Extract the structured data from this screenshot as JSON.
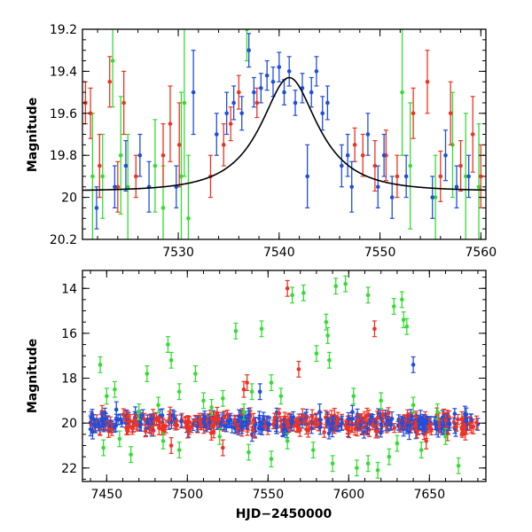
{
  "colors": {
    "green": "#33dd33",
    "red": "#ee3322",
    "blue": "#1f4fdd",
    "model": "#000000"
  },
  "chart_data": [
    {
      "type": "scatter",
      "panel": "top",
      "xlabel": "",
      "ylabel": "Magnitude",
      "xlim": [
        7520.5,
        7560.5
      ],
      "ylim": [
        20.2,
        19.2
      ],
      "y_inverted": true,
      "xticks": [
        7530,
        7540,
        7550,
        7560
      ],
      "yticks": [
        19.2,
        19.4,
        19.6,
        19.8,
        20,
        20.2
      ],
      "xtick_labels": [
        "7530",
        "7540",
        "7550",
        "7560"
      ],
      "ytick_labels": [
        "19.2",
        "19.4",
        "19.6",
        "19.8",
        "20",
        "20.2"
      ],
      "model": {
        "type": "microlensing",
        "peak_x": 7541,
        "peak_mag": 19.43,
        "base_mag": 19.97,
        "width": 5.5
      },
      "series": [
        {
          "color": "green",
          "points": [
            {
              "x": 7521.5,
              "y": 19.9,
              "e": 0.3
            },
            {
              "x": 7522.5,
              "y": 19.9,
              "e": 0.2
            },
            {
              "x": 7523.5,
              "y": 19.35,
              "e": 0.22
            },
            {
              "x": 7524.3,
              "y": 19.8,
              "e": 0.28
            },
            {
              "x": 7525,
              "y": 19.95,
              "e": 0.25
            },
            {
              "x": 7527.7,
              "y": 19.85,
              "e": 0.22
            },
            {
              "x": 7528.5,
              "y": 20.05,
              "e": 0.2
            },
            {
              "x": 7530.3,
              "y": 19.9,
              "e": 0.4
            },
            {
              "x": 7530.6,
              "y": 19.55,
              "e": 0.35
            },
            {
              "x": 7531,
              "y": 20.1,
              "e": 0.3
            },
            {
              "x": 7536.8,
              "y": 19.2,
              "e": 0.15
            },
            {
              "x": 7552.2,
              "y": 19.5,
              "e": 0.3
            },
            {
              "x": 7553,
              "y": 19.85,
              "e": 0.3
            },
            {
              "x": 7555.5,
              "y": 20.0,
              "e": 0.2
            },
            {
              "x": 7557.2,
              "y": 19.75,
              "e": 0.25
            },
            {
              "x": 7558.5,
              "y": 19.9,
              "e": 0.3
            },
            {
              "x": 7559.8,
              "y": 19.95,
              "e": 0.3
            }
          ]
        },
        {
          "color": "red",
          "points": [
            {
              "x": 7520.8,
              "y": 19.55,
              "e": 0.1
            },
            {
              "x": 7521.3,
              "y": 19.6,
              "e": 0.12
            },
            {
              "x": 7522.2,
              "y": 19.85,
              "e": 0.15
            },
            {
              "x": 7523.2,
              "y": 19.45,
              "e": 0.12
            },
            {
              "x": 7524,
              "y": 19.95,
              "e": 0.12
            },
            {
              "x": 7524.6,
              "y": 19.55,
              "e": 0.15
            },
            {
              "x": 7525.8,
              "y": 19.9,
              "e": 0.1
            },
            {
              "x": 7528.5,
              "y": 19.8,
              "e": 0.15
            },
            {
              "x": 7529.2,
              "y": 19.65,
              "e": 0.18
            },
            {
              "x": 7530.1,
              "y": 19.75,
              "e": 0.2
            },
            {
              "x": 7533.2,
              "y": 19.9,
              "e": 0.1
            },
            {
              "x": 7534.5,
              "y": 19.75,
              "e": 0.1
            },
            {
              "x": 7535.2,
              "y": 19.65,
              "e": 0.08
            },
            {
              "x": 7536,
              "y": 19.5,
              "e": 0.08
            },
            {
              "x": 7537.8,
              "y": 19.55,
              "e": 0.07
            },
            {
              "x": 7547.5,
              "y": 19.75,
              "e": 0.08
            },
            {
              "x": 7548.3,
              "y": 19.8,
              "e": 0.1
            },
            {
              "x": 7549.5,
              "y": 19.85,
              "e": 0.12
            },
            {
              "x": 7550.6,
              "y": 19.8,
              "e": 0.12
            },
            {
              "x": 7551.7,
              "y": 19.9,
              "e": 0.1
            },
            {
              "x": 7553.3,
              "y": 19.6,
              "e": 0.12
            },
            {
              "x": 7554.7,
              "y": 19.45,
              "e": 0.15
            },
            {
              "x": 7556,
              "y": 19.9,
              "e": 0.12
            },
            {
              "x": 7557,
              "y": 19.6,
              "e": 0.15
            },
            {
              "x": 7558,
              "y": 19.85,
              "e": 0.12
            },
            {
              "x": 7559.2,
              "y": 19.7,
              "e": 0.18
            },
            {
              "x": 7560,
              "y": 19.9,
              "e": 0.15
            }
          ]
        },
        {
          "color": "blue",
          "points": [
            {
              "x": 7521.9,
              "y": 20.05,
              "e": 0.1
            },
            {
              "x": 7523.7,
              "y": 19.95,
              "e": 0.1
            },
            {
              "x": 7524.8,
              "y": 19.85,
              "e": 0.12
            },
            {
              "x": 7526.2,
              "y": 19.8,
              "e": 0.1
            },
            {
              "x": 7527.1,
              "y": 19.95,
              "e": 0.12
            },
            {
              "x": 7529.8,
              "y": 19.95,
              "e": 0.1
            },
            {
              "x": 7531.5,
              "y": 19.5,
              "e": 0.2
            },
            {
              "x": 7533.8,
              "y": 19.7,
              "e": 0.1
            },
            {
              "x": 7534.8,
              "y": 19.6,
              "e": 0.1
            },
            {
              "x": 7535.5,
              "y": 19.55,
              "e": 0.08
            },
            {
              "x": 7536.3,
              "y": 19.6,
              "e": 0.08
            },
            {
              "x": 7537,
              "y": 19.3,
              "e": 0.08
            },
            {
              "x": 7537.5,
              "y": 19.5,
              "e": 0.07
            },
            {
              "x": 7538.2,
              "y": 19.48,
              "e": 0.07
            },
            {
              "x": 7538.8,
              "y": 19.42,
              "e": 0.07
            },
            {
              "x": 7539.4,
              "y": 19.45,
              "e": 0.07
            },
            {
              "x": 7540,
              "y": 19.38,
              "e": 0.07
            },
            {
              "x": 7540.5,
              "y": 19.5,
              "e": 0.06
            },
            {
              "x": 7541,
              "y": 19.4,
              "e": 0.07
            },
            {
              "x": 7541.6,
              "y": 19.55,
              "e": 0.06
            },
            {
              "x": 7542.3,
              "y": 19.48,
              "e": 0.07
            },
            {
              "x": 7542.8,
              "y": 19.9,
              "e": 0.15
            },
            {
              "x": 7543.2,
              "y": 19.5,
              "e": 0.07
            },
            {
              "x": 7543.7,
              "y": 19.4,
              "e": 0.07
            },
            {
              "x": 7544.3,
              "y": 19.6,
              "e": 0.08
            },
            {
              "x": 7544.8,
              "y": 19.55,
              "e": 0.08
            },
            {
              "x": 7546.2,
              "y": 19.85,
              "e": 0.1
            },
            {
              "x": 7546.8,
              "y": 19.8,
              "e": 0.1
            },
            {
              "x": 7547.2,
              "y": 19.95,
              "e": 0.12
            },
            {
              "x": 7548.8,
              "y": 19.7,
              "e": 0.1
            },
            {
              "x": 7549.8,
              "y": 19.95,
              "e": 0.1
            },
            {
              "x": 7550.4,
              "y": 19.8,
              "e": 0.1
            },
            {
              "x": 7551.2,
              "y": 20.0,
              "e": 0.1
            },
            {
              "x": 7552.6,
              "y": 19.9,
              "e": 0.1
            },
            {
              "x": 7555.2,
              "y": 20.0,
              "e": 0.1
            },
            {
              "x": 7556.5,
              "y": 19.8,
              "e": 0.12
            },
            {
              "x": 7557.6,
              "y": 19.95,
              "e": 0.1
            },
            {
              "x": 7558.8,
              "y": 19.9,
              "e": 0.1
            }
          ]
        }
      ]
    },
    {
      "type": "scatter",
      "panel": "bottom",
      "xlabel": "HJD−2450000",
      "ylabel": "Magnitude",
      "xlim": [
        7435,
        7685
      ],
      "ylim": [
        22.6,
        13.2
      ],
      "y_inverted": true,
      "xticks": [
        7450,
        7500,
        7550,
        7600,
        7650
      ],
      "yticks": [
        14,
        16,
        18,
        20,
        22
      ],
      "xtick_labels": [
        "7450",
        "7500",
        "7550",
        "7600",
        "7650"
      ],
      "ytick_labels": [
        "14",
        "16",
        "18",
        "20",
        "22"
      ],
      "dense_band": {
        "x_range": [
          7440,
          7680
        ],
        "center_mag": 20.0,
        "scatter": 0.25,
        "colors": [
          "blue",
          "red"
        ]
      },
      "series": [
        {
          "color": "green",
          "points": [
            {
              "x": 7446,
              "y": 17.4
            },
            {
              "x": 7450,
              "y": 18.8
            },
            {
              "x": 7455,
              "y": 18.5
            },
            {
              "x": 7470,
              "y": 19.5
            },
            {
              "x": 7475,
              "y": 17.8
            },
            {
              "x": 7482,
              "y": 19.2
            },
            {
              "x": 7488,
              "y": 16.5
            },
            {
              "x": 7490,
              "y": 17.2
            },
            {
              "x": 7495,
              "y": 18.6
            },
            {
              "x": 7505,
              "y": 17.8
            },
            {
              "x": 7510,
              "y": 19.0
            },
            {
              "x": 7515,
              "y": 19.3
            },
            {
              "x": 7522,
              "y": 18.9
            },
            {
              "x": 7530,
              "y": 15.9
            },
            {
              "x": 7535,
              "y": 19.5
            },
            {
              "x": 7540,
              "y": 18.6
            },
            {
              "x": 7546,
              "y": 15.8
            },
            {
              "x": 7552,
              "y": 18.2
            },
            {
              "x": 7558,
              "y": 18.8
            },
            {
              "x": 7565,
              "y": 14.3
            },
            {
              "x": 7572,
              "y": 14.2
            },
            {
              "x": 7580,
              "y": 16.9
            },
            {
              "x": 7586,
              "y": 15.5
            },
            {
              "x": 7587,
              "y": 16.1
            },
            {
              "x": 7588,
              "y": 17.2
            },
            {
              "x": 7592,
              "y": 13.9
            },
            {
              "x": 7598,
              "y": 13.8
            },
            {
              "x": 7603,
              "y": 18.8
            },
            {
              "x": 7612,
              "y": 14.3
            },
            {
              "x": 7620,
              "y": 19.0
            },
            {
              "x": 7628,
              "y": 14.8
            },
            {
              "x": 7633,
              "y": 14.5
            },
            {
              "x": 7634,
              "y": 15.4
            },
            {
              "x": 7636,
              "y": 15.7
            },
            {
              "x": 7640,
              "y": 19.2
            },
            {
              "x": 7655,
              "y": 19.5
            },
            {
              "x": 7668,
              "y": 21.9
            },
            {
              "x": 7448,
              "y": 21.1
            },
            {
              "x": 7458,
              "y": 20.7
            },
            {
              "x": 7465,
              "y": 21.4
            },
            {
              "x": 7485,
              "y": 20.8
            },
            {
              "x": 7495,
              "y": 21.2
            },
            {
              "x": 7520,
              "y": 20.6
            },
            {
              "x": 7538,
              "y": 21.3
            },
            {
              "x": 7552,
              "y": 21.6
            },
            {
              "x": 7562,
              "y": 20.8
            },
            {
              "x": 7578,
              "y": 21.2
            },
            {
              "x": 7590,
              "y": 21.8
            },
            {
              "x": 7605,
              "y": 22.0
            },
            {
              "x": 7612,
              "y": 21.8
            },
            {
              "x": 7618,
              "y": 22.1
            },
            {
              "x": 7625,
              "y": 21.5
            },
            {
              "x": 7630,
              "y": 20.9
            },
            {
              "x": 7645,
              "y": 21.2
            },
            {
              "x": 7660,
              "y": 20.6
            }
          ]
        },
        {
          "color": "red",
          "points": [
            {
              "x": 7490,
              "y": 21.0
            },
            {
              "x": 7522,
              "y": 21.1
            },
            {
              "x": 7535,
              "y": 18.5
            },
            {
              "x": 7537,
              "y": 18.2
            },
            {
              "x": 7562,
              "y": 14.0
            },
            {
              "x": 7569,
              "y": 17.6
            },
            {
              "x": 7616,
              "y": 15.8
            },
            {
              "x": 7648,
              "y": 20.8
            }
          ]
        },
        {
          "color": "blue",
          "points": [
            {
              "x": 7456,
              "y": 19.4
            },
            {
              "x": 7545,
              "y": 18.6
            },
            {
              "x": 7582,
              "y": 19.5
            },
            {
              "x": 7640,
              "y": 17.4
            },
            {
              "x": 7672,
              "y": 19.6
            }
          ]
        }
      ]
    }
  ]
}
